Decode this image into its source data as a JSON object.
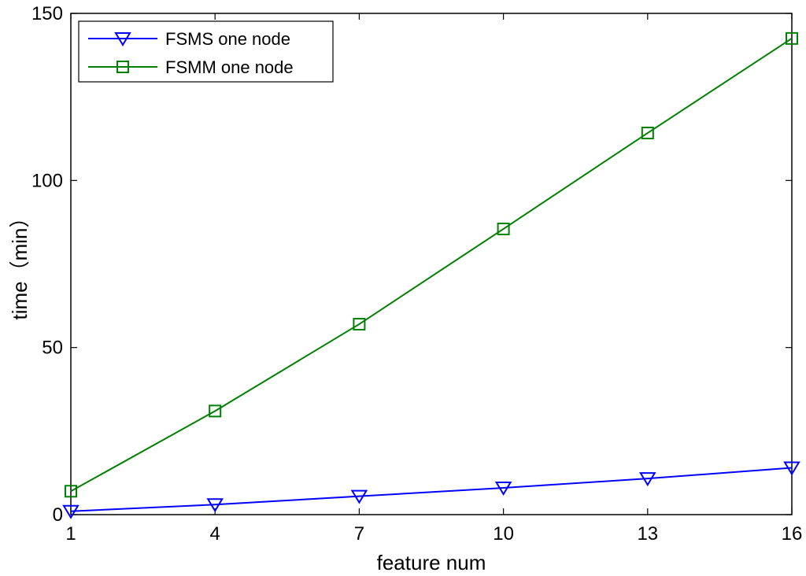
{
  "chart_data": {
    "type": "line",
    "xlabel": "feature num",
    "ylabel": "time（min）",
    "xlim": [
      1,
      16
    ],
    "ylim": [
      0,
      150
    ],
    "x_ticks": [
      "1",
      "4",
      "7",
      "10",
      "13",
      "16"
    ],
    "y_ticks": [
      "0",
      "50",
      "100",
      "150"
    ],
    "x": [
      1,
      4,
      7,
      10,
      13,
      16
    ],
    "series": [
      {
        "name": "FSMS one node",
        "values": [
          1,
          3,
          5.5,
          8,
          10.8,
          14
        ],
        "color": "#0000ff",
        "marker": "triangle-down"
      },
      {
        "name": "FSMM one node",
        "values": [
          7,
          31,
          57,
          85.5,
          114.2,
          142.5
        ],
        "color": "#008000",
        "marker": "square"
      }
    ],
    "legend_position": "top-left",
    "grid": false
  }
}
